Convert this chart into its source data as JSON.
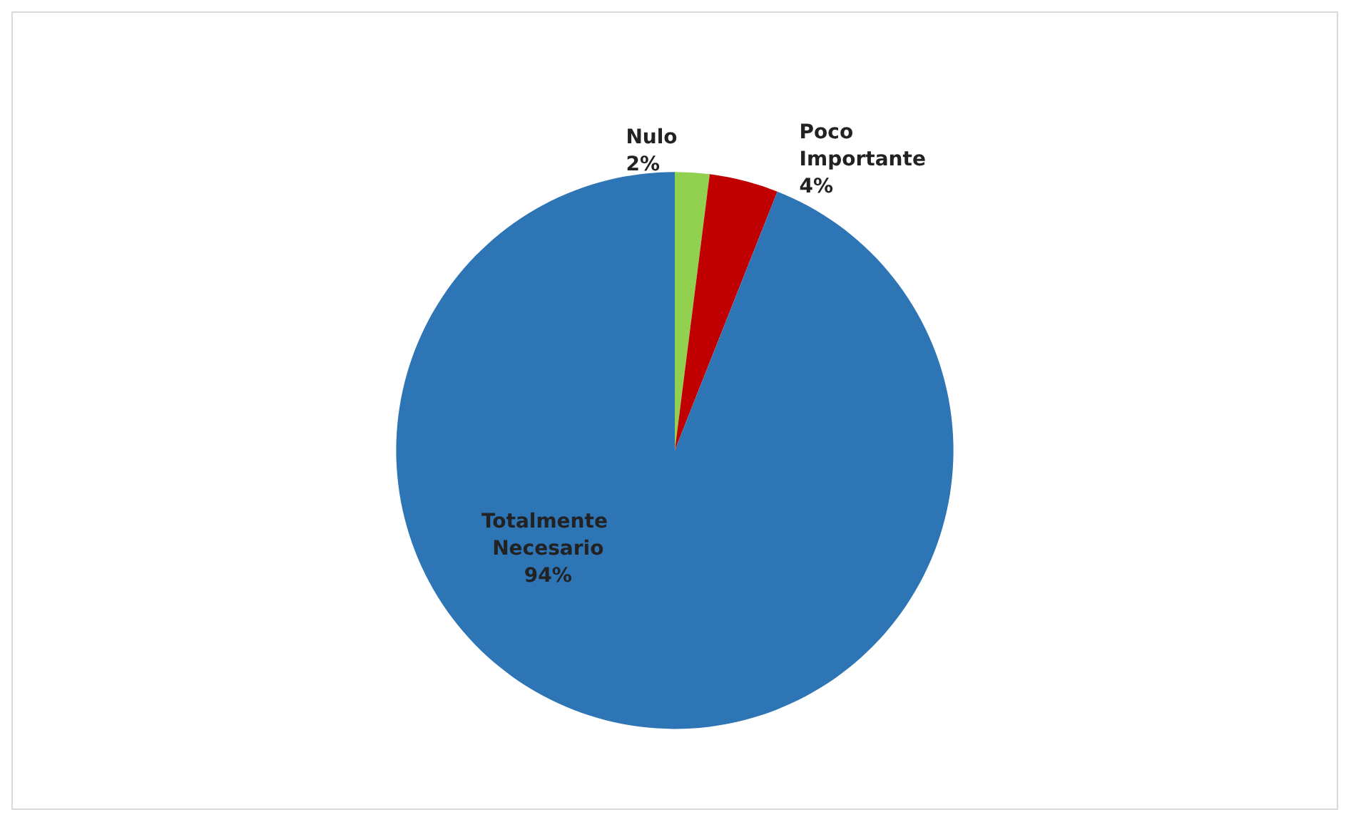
{
  "chart_data": {
    "type": "pie",
    "categories": [
      "Nulo",
      "Poco Importante",
      "Totalmente Necesario"
    ],
    "values": [
      2,
      4,
      94
    ],
    "colors": [
      "#92d050",
      "#c00000",
      "#2e75b6"
    ],
    "value_labels": [
      "2%",
      "4%",
      "94%"
    ]
  }
}
